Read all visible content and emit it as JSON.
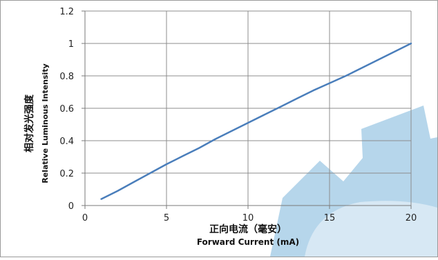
{
  "chart_data": {
    "type": "line",
    "title": "",
    "xlabel_cn": "正向电流（毫安）",
    "xlabel": "Forward Current (mA)",
    "ylabel_cn": "相对发光强度",
    "ylabel": "Relative Luminous Intensity",
    "xlim": [
      0,
      20
    ],
    "ylim": [
      0,
      1.2
    ],
    "x_ticks": [
      0,
      5,
      10,
      15,
      20
    ],
    "x_tick_labels": [
      "0",
      "5",
      "10",
      "15",
      "20"
    ],
    "y_ticks": [
      0,
      0.2,
      0.4,
      0.6,
      0.8,
      1.0,
      1.2
    ],
    "y_tick_labels": [
      "0",
      "0.2",
      "0.4",
      "0.6",
      "0.8",
      "1",
      "1.2"
    ],
    "grid": true,
    "legend": "none",
    "line_color": "#4a7ebb",
    "watermark_color": "#a9cfe8",
    "series": [
      {
        "x": [
          1,
          2,
          3,
          4,
          5,
          6,
          7,
          8,
          9,
          10,
          11,
          12,
          13,
          14,
          15,
          16,
          17,
          18,
          19,
          20
        ],
        "y": [
          0.04,
          0.09,
          0.145,
          0.2,
          0.255,
          0.305,
          0.355,
          0.41,
          0.46,
          0.51,
          0.56,
          0.61,
          0.66,
          0.71,
          0.755,
          0.8,
          0.85,
          0.9,
          0.95,
          1.0
        ]
      }
    ]
  }
}
